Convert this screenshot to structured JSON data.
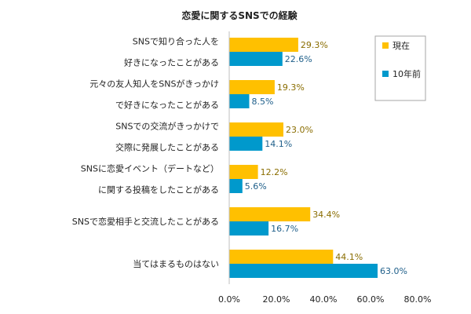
{
  "chart_data": {
    "type": "bar",
    "orientation": "horizontal",
    "title": "恋愛に関するSNSでの経験",
    "categories": [
      [
        "SNSで知り合った人を",
        "好きになったことがある"
      ],
      [
        "元々の友人知人をSNSがきっかけ",
        "で好きになったことがある"
      ],
      [
        "SNSでの交流がきっかけで",
        "交際に発展したことがある"
      ],
      [
        "SNSに恋愛イベント（デートなど）",
        "に関する投稿をしたことがある"
      ],
      [
        "SNSで恋愛相手と交流したことがある"
      ],
      [
        "当てはまるものはない"
      ]
    ],
    "series": [
      {
        "name": "現在",
        "color": "#FFC000",
        "values": [
          29.3,
          19.3,
          23.0,
          12.2,
          34.4,
          44.1
        ],
        "labels": [
          "29.3%",
          "19.3%",
          "23.0%",
          "12.2%",
          "34.4%",
          "44.1%"
        ]
      },
      {
        "name": "10年前",
        "color": "#0099CC",
        "values": [
          22.6,
          8.5,
          14.1,
          5.6,
          16.7,
          63.0
        ],
        "labels": [
          "22.6%",
          "8.5%",
          "14.1%",
          "5.6%",
          "16.7%",
          "63.0%"
        ]
      }
    ],
    "xlim": [
      0,
      80
    ],
    "xticks": [
      0,
      20,
      40,
      60,
      80
    ],
    "xtick_labels": [
      "0.0%",
      "20.0%",
      "40.0%",
      "60.0%",
      "80.0%"
    ],
    "legend_position": "top-right",
    "grid": false
  }
}
